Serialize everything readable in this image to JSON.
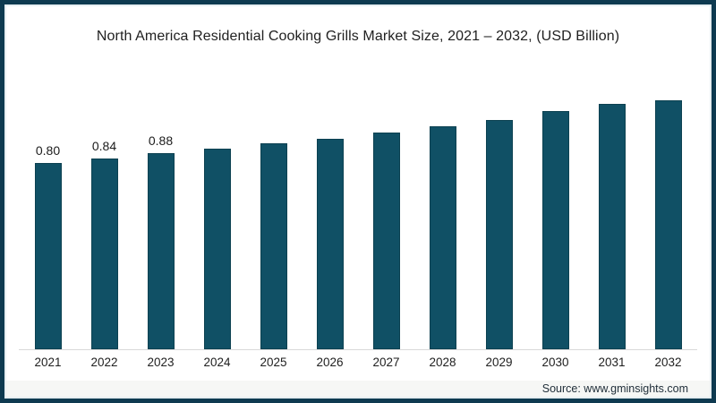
{
  "title": "North America Residential Cooking Grills Market Size, 2021 – 2032, (USD Billion)",
  "source": "Source: www.gminsights.com",
  "colors": {
    "bar": "#105065",
    "frame": "#0e3a50",
    "axis_line": "#d8d8d8",
    "title_text": "#212121",
    "footer_band": "#f6f7f5"
  },
  "chart_data": {
    "type": "bar",
    "title": "North America Residential Cooking Grills Market Size, 2021 – 2032, (USD Billion)",
    "categories": [
      "2021",
      "2022",
      "2023",
      "2024",
      "2025",
      "2026",
      "2027",
      "2028",
      "2029",
      "2030",
      "2031",
      "2032"
    ],
    "values": [
      0.8,
      0.84,
      0.88,
      0.92,
      0.96,
      1.0,
      1.05,
      1.1,
      1.15,
      1.22,
      1.28,
      1.31
    ],
    "data_labels": [
      "0.80",
      "0.84",
      "0.88",
      "",
      "",
      "",
      "",
      "",
      "",
      "",
      "",
      ""
    ],
    "xlabel": "",
    "ylabel": "",
    "unit": "USD Billion",
    "y_axis_visible": false,
    "gridlines": false,
    "legend_position": "none",
    "note": "Only first three bars show value labels; bars drawn on a truncated value scale"
  }
}
